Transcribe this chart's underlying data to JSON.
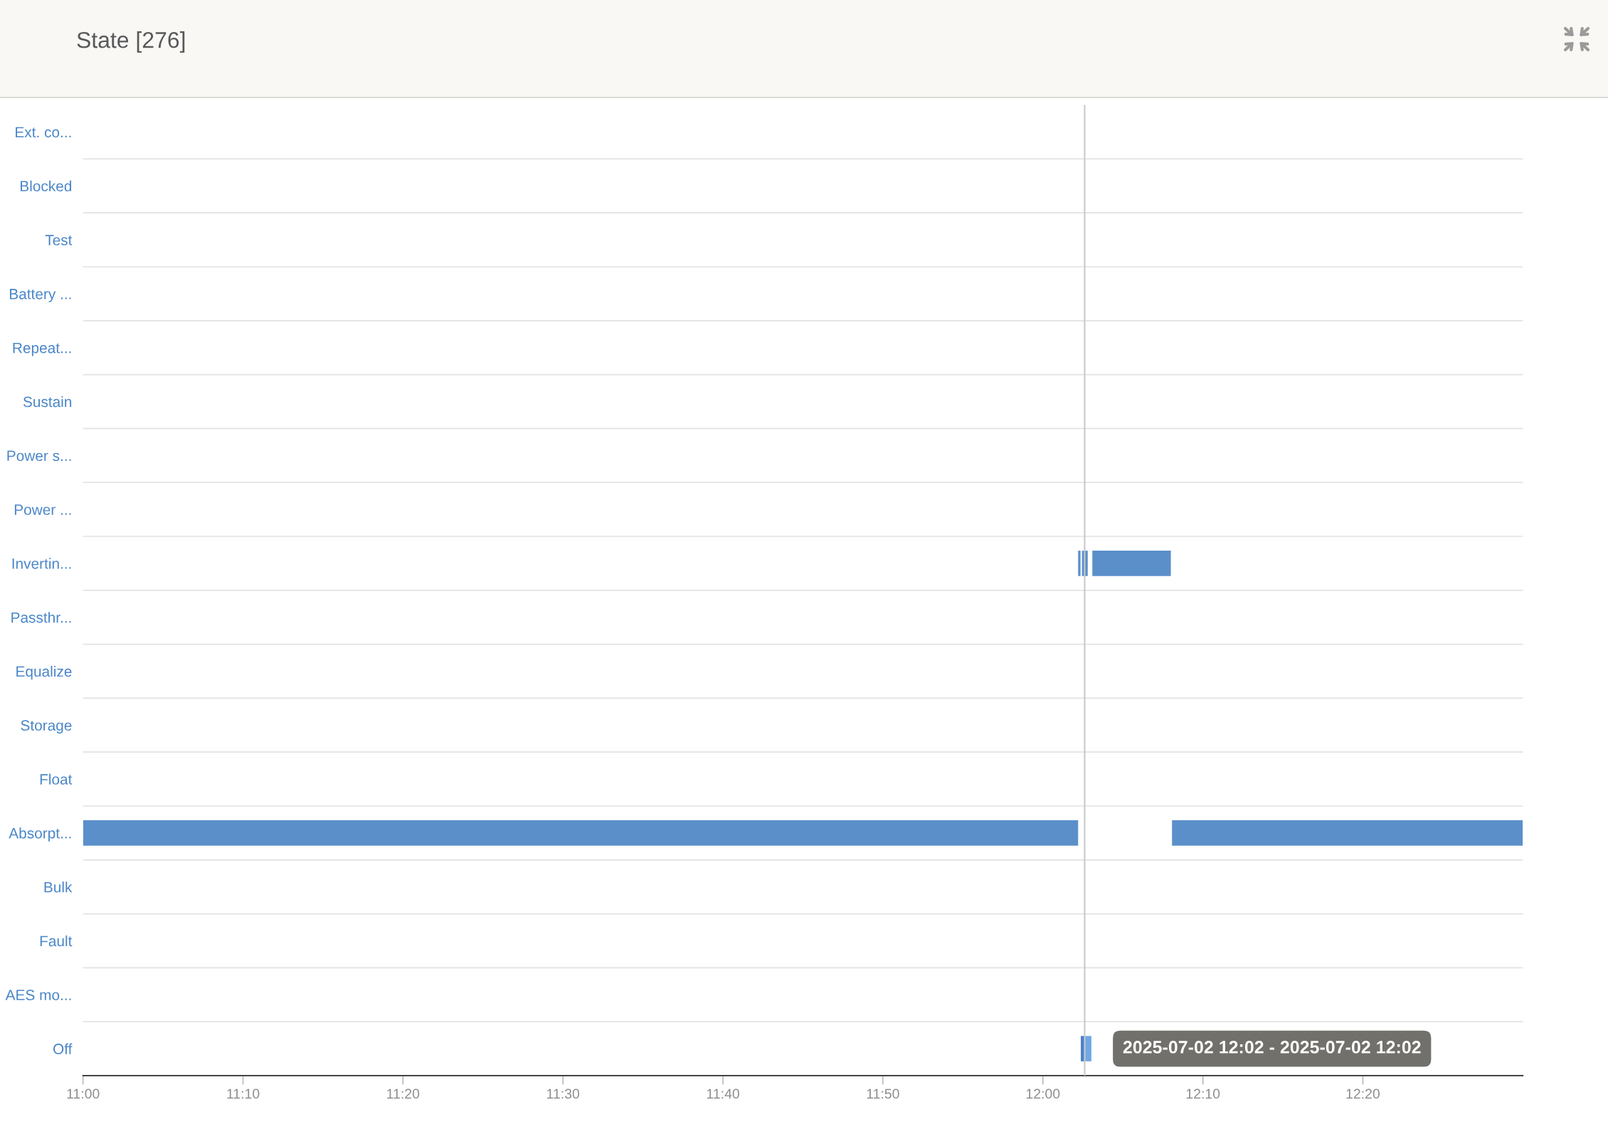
{
  "chart_data": {
    "type": "bar",
    "orientation": "horizontal",
    "title": "State [276]",
    "categories": [
      "Ext. co...",
      "Blocked",
      "Test",
      "Battery ...",
      "Repeat...",
      "Sustain",
      "Power s...",
      "Power ...",
      "Invertin...",
      "Passthr...",
      "Equalize",
      "Storage",
      "Float",
      "Absorpt...",
      "Bulk",
      "Fault",
      "AES mo...",
      "Off"
    ],
    "series": [
      {
        "color": "#5b8fca",
        "base": [
          null,
          null,
          null,
          null,
          null,
          null,
          null,
          null,
          12.0367,
          null,
          null,
          null,
          null,
          11.0,
          null,
          null,
          null,
          null
        ],
        "values": [
          null,
          null,
          null,
          null,
          null,
          null,
          null,
          null,
          0.0025,
          null,
          null,
          null,
          null,
          1.0367,
          null,
          null,
          null,
          null
        ]
      },
      {
        "color": "#5b8fca",
        "base": [
          null,
          null,
          null,
          null,
          null,
          null,
          null,
          null,
          12.0407,
          null,
          null,
          null,
          null,
          12.1345,
          null,
          null,
          null,
          null
        ],
        "values": [
          null,
          null,
          null,
          null,
          null,
          null,
          null,
          null,
          0.006,
          null,
          null,
          null,
          null,
          0.3655,
          null,
          null,
          null,
          null
        ]
      },
      {
        "color": "#5b8fca",
        "base": [
          null,
          null,
          null,
          null,
          null,
          null,
          null,
          null,
          12.0515,
          null,
          null,
          null,
          null,
          null,
          null,
          null,
          null,
          null
        ],
        "values": [
          null,
          null,
          null,
          null,
          null,
          null,
          null,
          null,
          0.0818,
          null,
          null,
          null,
          null,
          null,
          null,
          null,
          null,
          null
        ]
      },
      {
        "color": "#4a80c8",
        "base": [
          null,
          null,
          null,
          null,
          null,
          null,
          null,
          null,
          null,
          null,
          null,
          null,
          null,
          null,
          null,
          null,
          null,
          12.0395
        ],
        "values": [
          null,
          null,
          null,
          null,
          null,
          null,
          null,
          null,
          null,
          null,
          null,
          null,
          null,
          null,
          null,
          null,
          null,
          0.0037
        ]
      },
      {
        "color": "#6fa8e6",
        "base": [
          null,
          null,
          null,
          null,
          null,
          null,
          null,
          null,
          null,
          null,
          null,
          null,
          null,
          null,
          null,
          null,
          null,
          12.044
        ],
        "values": [
          null,
          null,
          null,
          null,
          null,
          null,
          null,
          null,
          null,
          null,
          null,
          null,
          null,
          null,
          null,
          null,
          null,
          0.0065
        ]
      }
    ],
    "xlim": [
      11.0,
      12.5
    ],
    "xticks": [
      {
        "value": 11.0,
        "label": "11:00"
      },
      {
        "value": 11.1667,
        "label": "11:10"
      },
      {
        "value": 11.3333,
        "label": "11:20"
      },
      {
        "value": 11.5,
        "label": "11:30"
      },
      {
        "value": 11.6667,
        "label": "11:40"
      },
      {
        "value": 11.8333,
        "label": "11:50"
      },
      {
        "value": 12.0,
        "label": "12:00"
      },
      {
        "value": 12.1667,
        "label": "12:10"
      },
      {
        "value": 12.3333,
        "label": "12:20"
      }
    ],
    "grid": "y",
    "ref_lines": [
      {
        "axis": "x",
        "value": 12.0435,
        "color": "#c8c8c8"
      }
    ],
    "annotations": [
      {
        "text": "2025-07-02 12:02 - 2025-07-02 12:02",
        "x": 12.044,
        "y": "Off"
      }
    ]
  }
}
